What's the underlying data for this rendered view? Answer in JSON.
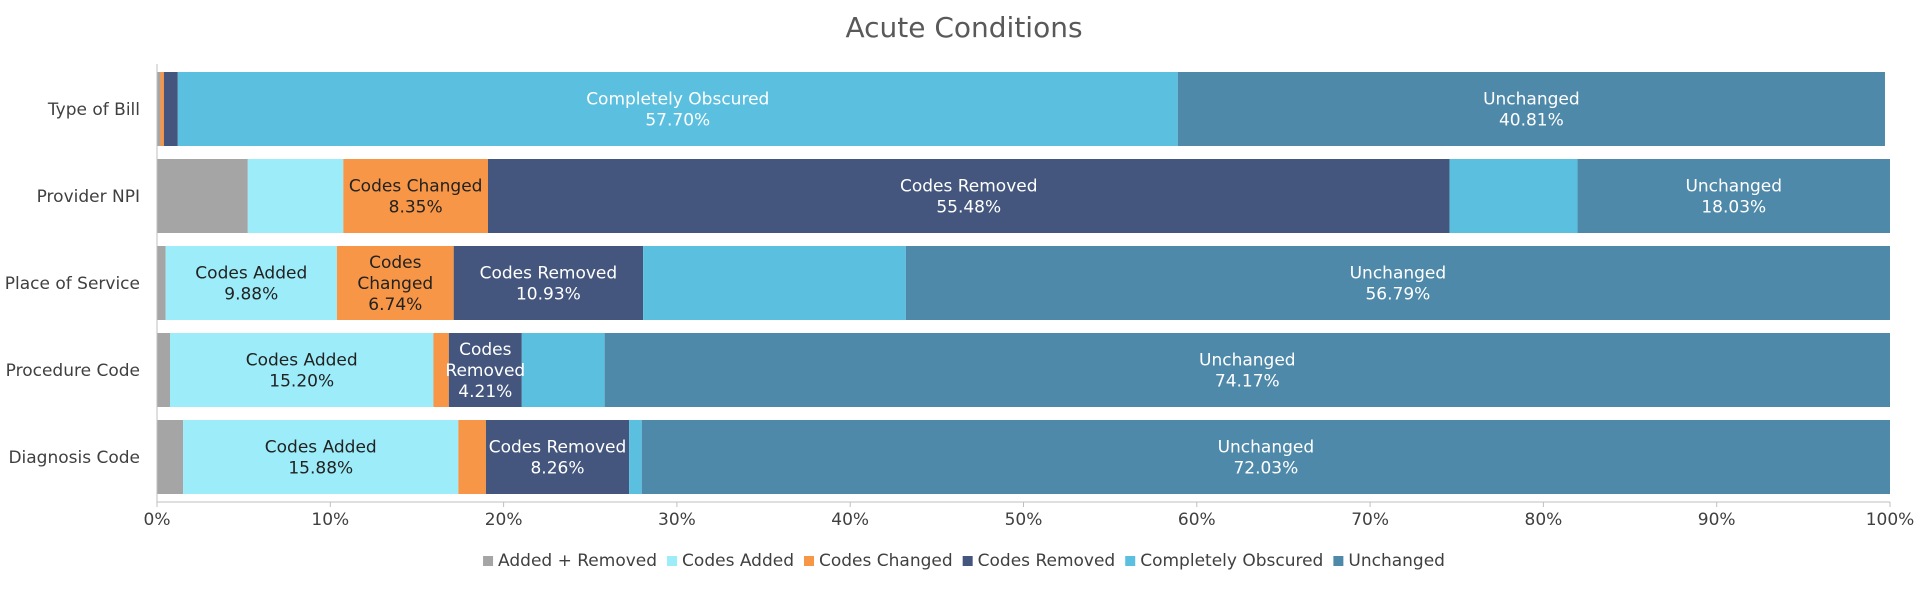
{
  "chart_data": {
    "type": "bar",
    "orientation": "horizontal",
    "stacked": "percent",
    "title": "Acute Conditions",
    "categories": [
      "Type of Bill",
      "Provider NPI",
      "Place of Service",
      "Procedure Code",
      "Diagnosis Code"
    ],
    "xlim": [
      0,
      100
    ],
    "x_ticks": [
      "0%",
      "10%",
      "20%",
      "30%",
      "40%",
      "50%",
      "60%",
      "70%",
      "80%",
      "90%",
      "100%"
    ],
    "grid": false,
    "legend_position": "bottom",
    "series": [
      {
        "name": "Added + Removed",
        "color": "#a5a5a5",
        "values": [
          0.2,
          5.24,
          0.5,
          0.75,
          1.51
        ],
        "labels": [
          "",
          "",
          "",
          "",
          ""
        ]
      },
      {
        "name": "Codes Added",
        "color": "#9decf9",
        "values": [
          0.0,
          5.51,
          9.88,
          15.2,
          15.88
        ],
        "labels": [
          "",
          "",
          "9.88%",
          "15.20%",
          "15.88%"
        ]
      },
      {
        "name": "Codes Changed",
        "color": "#f79646",
        "values": [
          0.2,
          8.35,
          6.74,
          0.89,
          1.59
        ],
        "labels": [
          "",
          "8.35%",
          "6.74%",
          "",
          ""
        ]
      },
      {
        "name": "Codes Removed",
        "color": "#44567d",
        "values": [
          0.8,
          55.48,
          10.93,
          4.21,
          8.26
        ],
        "labels": [
          "",
          "55.48%",
          "10.93%",
          "4.21%",
          "8.26%"
        ]
      },
      {
        "name": "Completely Obscured",
        "color": "#5bbfdf",
        "values": [
          57.7,
          7.39,
          15.16,
          4.78,
          0.73
        ],
        "labels": [
          "57.70%",
          "",
          "",
          "",
          ""
        ]
      },
      {
        "name": "Unchanged",
        "color": "#4f89aa",
        "values": [
          40.81,
          18.03,
          56.79,
          74.17,
          72.03
        ],
        "labels": [
          "40.81%",
          "18.03%",
          "56.79%",
          "74.17%",
          "72.03%"
        ]
      }
    ]
  }
}
